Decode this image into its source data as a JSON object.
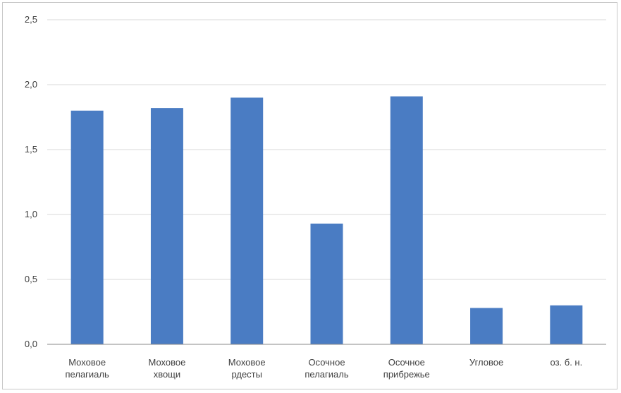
{
  "chart_data": {
    "type": "bar",
    "categories": [
      [
        "Моховое",
        "пелагиаль"
      ],
      [
        "Моховое",
        "хвощи"
      ],
      [
        "Моховое",
        "рдесты"
      ],
      [
        "Осочное",
        "пелагиаль"
      ],
      [
        "Осочное",
        "прибрежье"
      ],
      [
        "Угловое"
      ],
      [
        "оз. б. н."
      ]
    ],
    "series": [
      {
        "values": [
          1.8,
          1.82,
          1.9,
          0.93,
          1.91,
          0.28,
          0.3
        ]
      }
    ],
    "ylim": [
      0,
      2.5
    ],
    "yticks": [
      "0,0",
      "0,5",
      "1,0",
      "1,5",
      "2,0",
      "2,5"
    ],
    "grid": true,
    "legend": "none",
    "colors": {
      "bar": "#4a7cc3",
      "grid": "#d9d9d9",
      "axis": "#888888"
    }
  }
}
